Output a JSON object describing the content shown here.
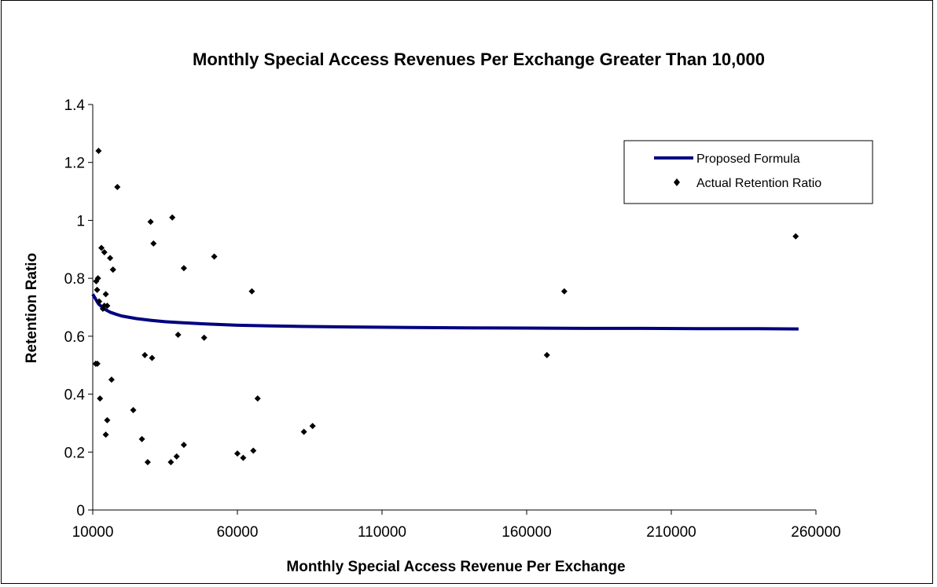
{
  "chart_data": {
    "type": "scatter",
    "title": "Monthly Special Access Revenues Per Exchange Greater Than 10,000",
    "xlabel": "Monthly Special Access Revenue Per Exchange",
    "ylabel": "Retention Ratio",
    "xlim": [
      10000,
      260000
    ],
    "ylim": [
      0,
      1.4
    ],
    "xticks": [
      10000,
      60000,
      110000,
      160000,
      210000,
      260000
    ],
    "xtick_labels": [
      "10000",
      "60000",
      "110000",
      "160000",
      "210000",
      "260000"
    ],
    "yticks": [
      0,
      0.2,
      0.4,
      0.6,
      0.8,
      1,
      1.2,
      1.4
    ],
    "ytick_labels": [
      "0",
      "0.2",
      "0.4",
      "0.6",
      "0.8",
      "1",
      "1.2",
      "1.4"
    ],
    "grid": false,
    "legend_position": "top-right",
    "series": [
      {
        "name": "Proposed Formula",
        "kind": "line",
        "color": "#000080",
        "x": [
          10000,
          12000,
          14000,
          16000,
          18000,
          20000,
          25000,
          30000,
          35000,
          40000,
          50000,
          60000,
          70000,
          80000,
          100000,
          120000,
          140000,
          160000,
          180000,
          200000,
          220000,
          240000,
          254000
        ],
        "y": [
          0.745,
          0.711,
          0.694,
          0.683,
          0.676,
          0.67,
          0.661,
          0.655,
          0.65,
          0.647,
          0.642,
          0.638,
          0.636,
          0.634,
          0.632,
          0.63,
          0.629,
          0.628,
          0.627,
          0.627,
          0.626,
          0.626,
          0.625
        ]
      },
      {
        "name": "Actual Retention Ratio",
        "kind": "scatter",
        "color": "#000000",
        "x": [
          11000,
          11500,
          11200,
          11800,
          11600,
          12000,
          12200,
          12500,
          13000,
          13500,
          14000,
          14000,
          14500,
          15000,
          14500,
          15000,
          16000,
          16500,
          17000,
          17000,
          18500,
          24000,
          27000,
          28000,
          29000,
          30000,
          30500,
          31000,
          37000,
          37500,
          39000,
          39500,
          41500,
          41500,
          48500,
          52000,
          60000,
          62000,
          65000,
          65500,
          67000,
          83000,
          86000,
          167000,
          173000,
          253000
        ],
        "y": [
          0.505,
          0.76,
          0.79,
          0.8,
          0.505,
          1.24,
          0.72,
          0.385,
          0.905,
          0.695,
          0.89,
          0.705,
          0.745,
          0.31,
          0.26,
          0.705,
          0.87,
          0.45,
          0.83,
          0.83,
          1.115,
          0.345,
          0.245,
          0.535,
          0.165,
          0.995,
          0.525,
          0.92,
          0.165,
          1.01,
          0.185,
          0.605,
          0.835,
          0.225,
          0.595,
          0.875,
          0.195,
          0.18,
          0.755,
          0.205,
          0.385,
          0.27,
          0.29,
          0.535,
          0.755,
          0.945
        ]
      }
    ]
  }
}
